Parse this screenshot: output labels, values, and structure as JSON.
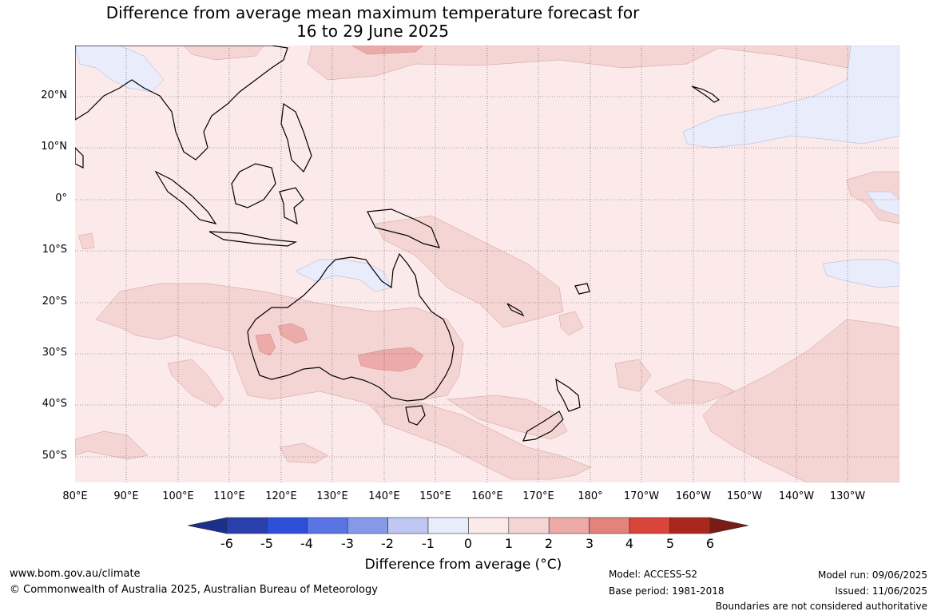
{
  "title": {
    "line1": "Difference from average mean maximum temperature forecast for",
    "line2": "16 to 29 June 2025"
  },
  "map": {
    "lat_labels": [
      "20°N",
      "10°N",
      "0°",
      "10°S",
      "20°S",
      "30°S",
      "40°S",
      "50°S"
    ],
    "lon_labels": [
      "80°E",
      "90°E",
      "100°E",
      "110°E",
      "120°E",
      "130°E",
      "140°E",
      "150°E",
      "160°E",
      "170°E",
      "180°",
      "170°W",
      "160°W",
      "150°W",
      "140°W",
      "130°W"
    ],
    "ocean_color": "#fbeae9",
    "anomaly_0_1_color": "#fbeae9",
    "anomaly_1_2_color": "#f5d5d4",
    "anomaly_2_3_color": "#ecaaa8",
    "anomaly_neg_color": "#e8ecfb"
  },
  "colorbar": {
    "ticks": [
      "-6",
      "-5",
      "-4",
      "-3",
      "-2",
      "-1",
      "0",
      "1",
      "2",
      "3",
      "4",
      "5",
      "6"
    ],
    "colors": [
      "#1d2f8c",
      "#2a3fae",
      "#2e4fd8",
      "#5a74e3",
      "#8698e8",
      "#bfc7f2",
      "#e8ecfb",
      "#fbeae9",
      "#f5d5d4",
      "#ecaaa8",
      "#e4837c",
      "#d9453a",
      "#a9271f",
      "#7a1b15"
    ],
    "label": "Difference from average (°C)"
  },
  "footer": {
    "url": "www.bom.gov.au/climate",
    "copyright": "© Commonwealth of Australia 2025, Australian Bureau of Meteorology",
    "model": "Model: ACCESS-S2",
    "base_period": "Base period: 1981-2018",
    "model_run": "Model run: 09/06/2025",
    "issued": "Issued: 11/06/2025",
    "boundaries": "Boundaries are not considered authoritative"
  }
}
